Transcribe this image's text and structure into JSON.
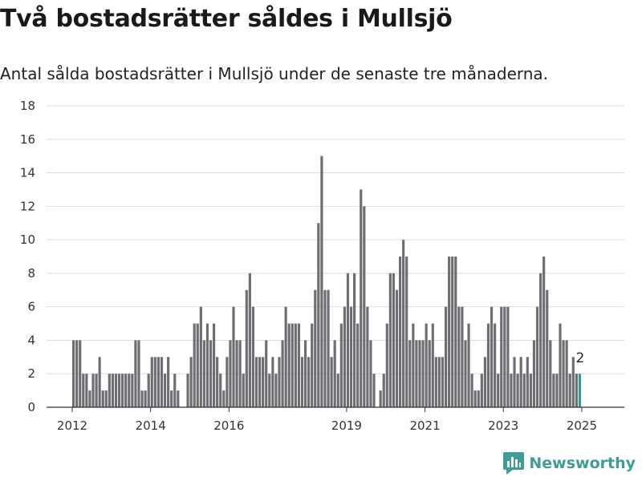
{
  "title": "Två bostadsrätter såldes i Mullsjö",
  "subtitle": "Antal sålda bostadsrätter i Mullsjö under de senaste tre månaderna.",
  "brand": {
    "name": "Newsworthy",
    "color": "#3e9e94"
  },
  "chart_data": {
    "type": "bar",
    "start": "2012-01",
    "colors": {
      "bar": "#6e6d72",
      "highlight": "#2f9c92",
      "grid": "#dddddd",
      "axis": "#333333"
    },
    "ylim": [
      0,
      18
    ],
    "yticks": [
      0,
      2,
      4,
      6,
      8,
      10,
      12,
      14,
      16,
      18
    ],
    "xticks": [
      "2012",
      "2014",
      "2016",
      "2019",
      "2021",
      "2023",
      "2025"
    ],
    "values": [
      4,
      4,
      4,
      2,
      2,
      1,
      2,
      2,
      3,
      1,
      1,
      2,
      2,
      2,
      2,
      2,
      2,
      2,
      2,
      4,
      4,
      1,
      1,
      2,
      3,
      3,
      3,
      3,
      2,
      3,
      1,
      2,
      1,
      0,
      0,
      2,
      3,
      5,
      5,
      6,
      4,
      5,
      4,
      5,
      3,
      2,
      1,
      3,
      4,
      6,
      4,
      4,
      2,
      7,
      8,
      6,
      3,
      3,
      3,
      4,
      2,
      3,
      2,
      3,
      4,
      6,
      5,
      5,
      5,
      5,
      3,
      4,
      3,
      5,
      7,
      11,
      15,
      7,
      7,
      3,
      4,
      2,
      5,
      6,
      8,
      6,
      8,
      5,
      13,
      12,
      6,
      4,
      2,
      0,
      1,
      2,
      5,
      8,
      8,
      7,
      9,
      10,
      9,
      4,
      5,
      4,
      4,
      4,
      5,
      4,
      5,
      3,
      3,
      3,
      6,
      9,
      9,
      9,
      6,
      6,
      4,
      5,
      2,
      1,
      1,
      2,
      3,
      5,
      6,
      5,
      2,
      6,
      6,
      6,
      2,
      3,
      2,
      3,
      2,
      3,
      2,
      4,
      6,
      8,
      9,
      7,
      4,
      2,
      2,
      5,
      4,
      4,
      2,
      3,
      2,
      2
    ],
    "highlight_last": true,
    "end_label": "2"
  }
}
